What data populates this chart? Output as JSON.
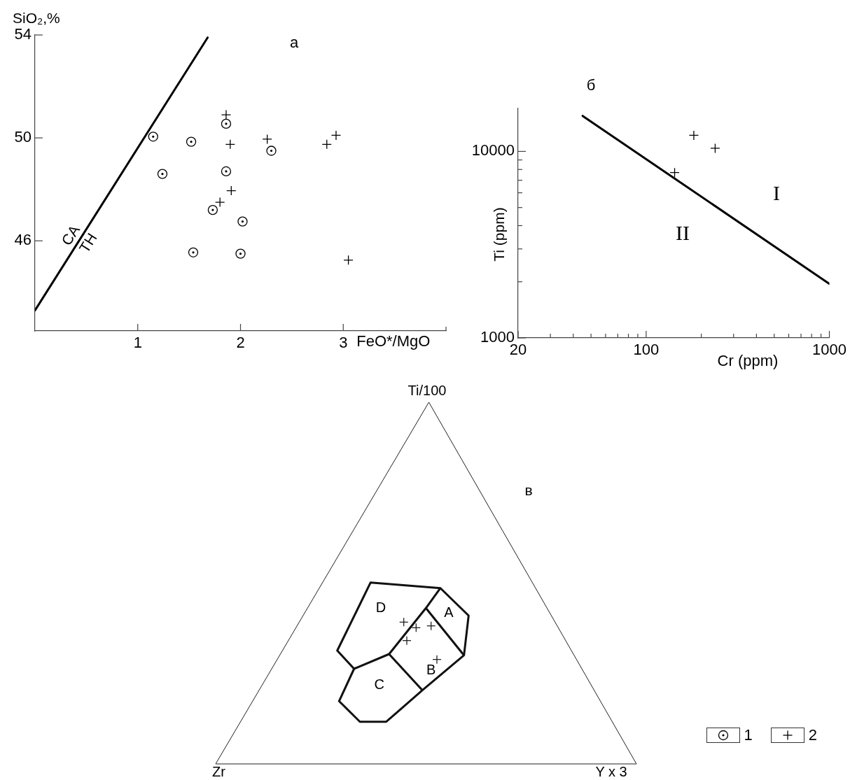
{
  "chart_data": [
    {
      "type": "scatter",
      "title": "а",
      "xlabel": "FeO*/MgO",
      "ylabel": "SiO₂,%",
      "xlim": [
        0,
        4
      ],
      "ylim": [
        42.5,
        54
      ],
      "xticks": [
        1,
        2,
        3,
        {
          "value": 4,
          "label": null
        }
      ],
      "yticks": [
        46,
        50,
        54
      ],
      "legend": "bottom right",
      "series": [
        {
          "name": "1",
          "color": "#000000",
          "marker": "circle",
          "x": [
            1.15,
            1.52,
            1.86,
            2.3,
            1.24,
            1.86,
            1.73,
            2.02,
            1.54,
            2.0
          ],
          "values": [
            50.05,
            49.85,
            50.55,
            49.5,
            48.6,
            48.7,
            47.2,
            46.75,
            45.55,
            45.5
          ]
        },
        {
          "name": "2",
          "color": "#000000",
          "marker": "cross",
          "x": [
            1.86,
            1.9,
            2.26,
            1.91,
            1.8,
            2.84,
            2.93,
            3.05
          ],
          "values": [
            50.9,
            49.75,
            49.95,
            47.95,
            47.5,
            49.75,
            50.1,
            45.25
          ]
        },
        {
          "type": "line",
          "color": "#000000",
          "x": [
            0,
            1.68
          ],
          "values": [
            43.3,
            53.9
          ]
        }
      ],
      "annotations": [
        "CA",
        "TH"
      ]
    },
    {
      "type": "scatter",
      "title": "б",
      "xlabel": "Cr (ppm)",
      "ylabel": "Ti (ppm)",
      "log": "xy",
      "xlim": [
        20,
        1000
      ],
      "ylim": [
        1000,
        17000
      ],
      "xticks": [
        20,
        {
          "value": 30,
          "label": null
        },
        {
          "value": 40,
          "label": null
        },
        {
          "value": 50,
          "label": null
        },
        {
          "value": 60,
          "label": null
        },
        {
          "value": 70,
          "label": null
        },
        {
          "value": 80,
          "label": null
        },
        {
          "value": 90,
          "label": null
        },
        100,
        {
          "value": 200,
          "label": null
        },
        {
          "value": 300,
          "label": null
        },
        {
          "value": 400,
          "label": null
        },
        {
          "value": 500,
          "label": null
        },
        {
          "value": 600,
          "label": null
        },
        {
          "value": 700,
          "label": null
        },
        {
          "value": 800,
          "label": null
        },
        {
          "value": 900,
          "label": null
        },
        1000
      ],
      "yticks": [
        1000,
        {
          "value": 2000,
          "label": null
        },
        {
          "value": 3000,
          "label": null
        },
        {
          "value": 4000,
          "label": null
        },
        {
          "value": 5000,
          "label": null
        },
        {
          "value": 6000,
          "label": null
        },
        {
          "value": 7000,
          "label": null
        },
        {
          "value": 8000,
          "label": null
        },
        {
          "value": 9000,
          "label": null
        },
        10000
      ],
      "series": [
        {
          "color": "#000000",
          "marker": "cross",
          "x": [
            182,
            238,
            143
          ],
          "values": [
            12200,
            10400,
            7700
          ]
        },
        {
          "type": "line",
          "color": "#000000",
          "x": [
            45,
            1000
          ],
          "values": [
            15500,
            1950
          ]
        }
      ],
      "annotations": [
        "I",
        "II"
      ]
    },
    {
      "type": "other",
      "title": "в",
      "annotations": [
        "Ti/100",
        "Zr",
        "Y x 3",
        "A",
        "B",
        "C",
        "D"
      ]
    }
  ]
}
